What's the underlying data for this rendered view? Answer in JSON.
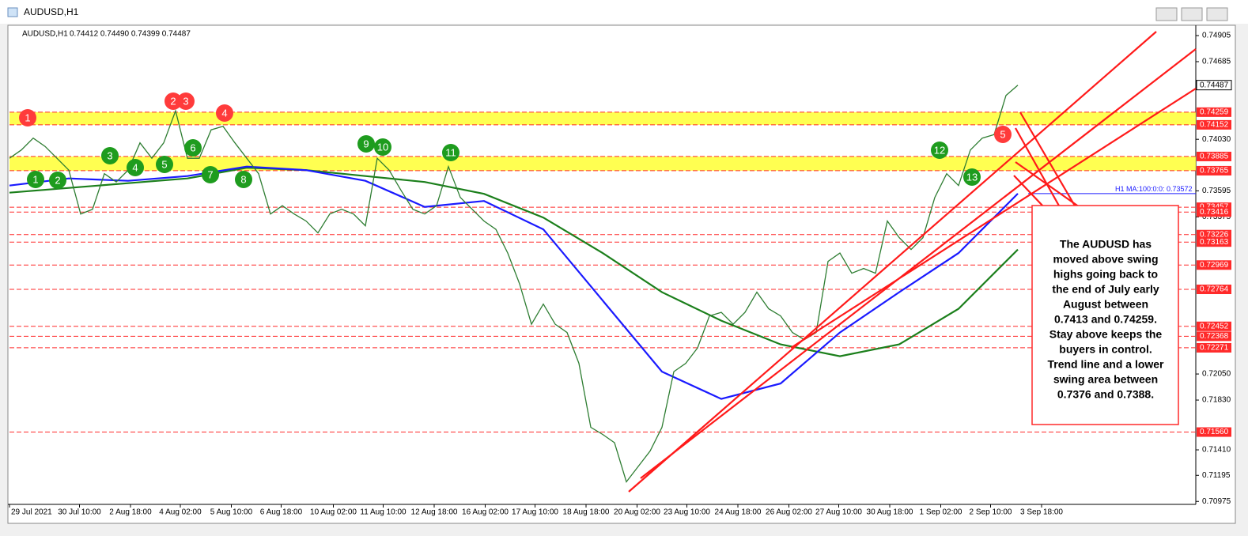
{
  "window_title": "AUDUSD,H1",
  "chart_data": {
    "type": "line",
    "symbol": "AUDUSD,H1",
    "quote": "0.74412 0.74490 0.74399 0.74487",
    "ylim": [
      0.7095,
      0.74965
    ],
    "xlim": [
      0,
      100
    ],
    "yticks": [
      0.74905,
      0.74685,
      {
        "value": 0.7403,
        "label": "0.74030"
      },
      0.73595,
      0.73375,
      {
        "value": 0.7205,
        "label": "0.72050"
      },
      {
        "value": 0.7183,
        "label": "0.71830"
      },
      {
        "value": 0.7141,
        "label": "0.71410"
      },
      0.71195,
      0.70975
    ],
    "xticks": [
      {
        "value": 0,
        "label": "29 Jul 2021"
      },
      {
        "value": 5.9,
        "label": "30 Jul 10:00"
      },
      {
        "value": 10.2,
        "label": "2 Aug 18:00"
      },
      {
        "value": 14.4,
        "label": "4 Aug 02:00"
      },
      {
        "value": 18.7,
        "label": "5 Aug 10:00"
      },
      {
        "value": 22.9,
        "label": "6 Aug 18:00"
      },
      {
        "value": 27.3,
        "label": "10 Aug 02:00"
      },
      {
        "value": 31.5,
        "label": "11 Aug 10:00"
      },
      {
        "value": 35.8,
        "label": "12 Aug 18:00"
      },
      {
        "value": 40.1,
        "label": "16 Aug 02:00"
      },
      {
        "value": 44.3,
        "label": "17 Aug 10:00"
      },
      {
        "value": 48.6,
        "label": "18 Aug 18:00"
      },
      {
        "value": 52.9,
        "label": "20 Aug 02:00"
      },
      {
        "value": 57.1,
        "label": "23 Aug 10:00"
      },
      {
        "value": 61.4,
        "label": "24 Aug 18:00"
      },
      {
        "value": 65.7,
        "label": "26 Aug 02:00"
      },
      {
        "value": 69.9,
        "label": "27 Aug 10:00"
      },
      {
        "value": 74.2,
        "label": "30 Aug 18:00"
      },
      {
        "value": 78.5,
        "label": "1 Sep 02:00"
      },
      {
        "value": 82.7,
        "label": "2 Sep 10:00"
      },
      {
        "value": 87,
        "label": "3 Sep 18:00"
      }
    ],
    "price": {
      "color": "#2e7d32",
      "x": [
        0,
        1,
        2,
        3,
        4,
        5,
        6,
        7,
        8,
        9,
        10,
        11,
        12,
        13,
        14,
        15,
        16,
        17,
        18,
        19,
        20,
        21,
        22,
        23,
        24,
        25,
        26,
        27,
        28,
        29,
        30,
        31,
        32,
        33,
        34,
        35,
        36,
        37,
        38,
        39,
        40,
        41,
        42,
        43,
        44,
        45,
        46,
        47,
        48,
        49,
        50,
        51,
        52,
        53,
        54,
        55,
        56,
        57,
        58,
        59,
        60,
        61,
        62,
        63,
        64,
        65,
        66,
        67,
        68,
        69,
        70,
        71,
        72,
        73,
        74,
        75,
        76,
        77,
        78,
        79,
        80,
        81,
        82,
        83,
        84,
        85
      ],
      "values": [
        0.7387,
        0.7394,
        0.7404,
        0.7397,
        0.7387,
        0.7377,
        0.734,
        0.7344,
        0.7374,
        0.7367,
        0.7377,
        0.74,
        0.7387,
        0.74,
        0.7427,
        0.7387,
        0.7387,
        0.7411,
        0.7414,
        0.74,
        0.7387,
        0.7374,
        0.734,
        0.7347,
        0.734,
        0.7334,
        0.7324,
        0.734,
        0.7344,
        0.734,
        0.733,
        0.7387,
        0.7377,
        0.736,
        0.7344,
        0.734,
        0.7347,
        0.738,
        0.7354,
        0.7344,
        0.7334,
        0.7327,
        0.7307,
        0.7281,
        0.7247,
        0.7264,
        0.7247,
        0.724,
        0.7214,
        0.716,
        0.7154,
        0.7147,
        0.7114,
        0.7127,
        0.714,
        0.716,
        0.7207,
        0.7214,
        0.7227,
        0.7254,
        0.7257,
        0.7247,
        0.7257,
        0.7274,
        0.726,
        0.7254,
        0.724,
        0.7234,
        0.724,
        0.73,
        0.7307,
        0.729,
        0.7294,
        0.729,
        0.7334,
        0.732,
        0.731,
        0.732,
        0.7354,
        0.7374,
        0.7364,
        0.7394,
        0.7404,
        0.7407,
        0.744,
        0.74487
      ]
    },
    "ma100": {
      "color": "#1a1aff",
      "label": "H1 MA:100:0:0: 0.73572",
      "x": [
        0,
        5,
        10,
        15,
        20,
        25,
        30,
        35,
        40,
        45,
        50,
        55,
        60,
        65,
        70,
        75,
        80,
        85
      ],
      "values": [
        0.7364,
        0.737,
        0.7368,
        0.7372,
        0.738,
        0.7377,
        0.7368,
        0.7346,
        0.7351,
        0.7327,
        0.7267,
        0.7207,
        0.7184,
        0.7197,
        0.724,
        0.7274,
        0.7307,
        0.73572
      ]
    },
    "ma200": {
      "color": "#1b7f1b",
      "x": [
        0,
        5,
        10,
        15,
        20,
        25,
        30,
        35,
        40,
        45,
        50,
        55,
        60,
        65,
        70,
        75,
        80,
        85
      ],
      "values": [
        0.7358,
        0.7362,
        0.7366,
        0.737,
        0.7379,
        0.7377,
        0.7372,
        0.7367,
        0.7357,
        0.7337,
        0.7307,
        0.7274,
        0.725,
        0.723,
        0.722,
        0.723,
        0.726,
        0.731
      ]
    },
    "zones": [
      [
        0.74152,
        0.74259
      ],
      [
        0.73765,
        0.73885
      ]
    ],
    "zone_color": "#ffff33",
    "levels": [
      0.74259,
      0.74152,
      0.73885,
      0.73765,
      0.73457,
      0.73416,
      0.73226,
      0.73163,
      0.72969,
      0.72764,
      0.72452,
      0.72368,
      0.72271,
      {
        "value": 0.7156,
        "label": "0.71560"
      }
    ],
    "level_color": "#ff2a2a",
    "last": 0.74487,
    "markers": [
      {
        "label": "1",
        "color": "#ff3b3b"
      },
      {
        "label": "2",
        "color": "#ff3b3b"
      },
      {
        "label": "3",
        "color": "#ff3b3b"
      },
      {
        "label": "4",
        "color": "#ff3b3b"
      },
      {
        "label": "5",
        "color": "#ff3b3b"
      },
      {
        "label": "1",
        "color": "#1e9c1e"
      },
      {
        "label": "2",
        "color": "#1e9c1e"
      },
      {
        "label": "3",
        "color": "#1e9c1e"
      },
      {
        "label": "4",
        "color": "#1e9c1e"
      },
      {
        "label": "5",
        "color": "#1e9c1e"
      },
      {
        "label": "6",
        "color": "#1e9c1e"
      },
      {
        "label": "7",
        "color": "#1e9c1e"
      },
      {
        "label": "8",
        "color": "#1e9c1e"
      },
      {
        "label": "9",
        "color": "#1e9c1e"
      },
      {
        "label": "10",
        "color": "#1e9c1e"
      },
      {
        "label": "11",
        "color": "#1e9c1e"
      },
      {
        "label": "12",
        "color": "#1e9c1e"
      },
      {
        "label": "13",
        "color": "#1e9c1e"
      }
    ],
    "annotation": [
      "The AUDUSD has",
      "moved above swing",
      "highs going back to",
      "the end of July early",
      "August between",
      "0.7413 and 0.74259.",
      "Stay above keeps the",
      "buyers in control.",
      "Trend line and a lower",
      "swing area between",
      "0.7376 and 0.7388."
    ]
  }
}
